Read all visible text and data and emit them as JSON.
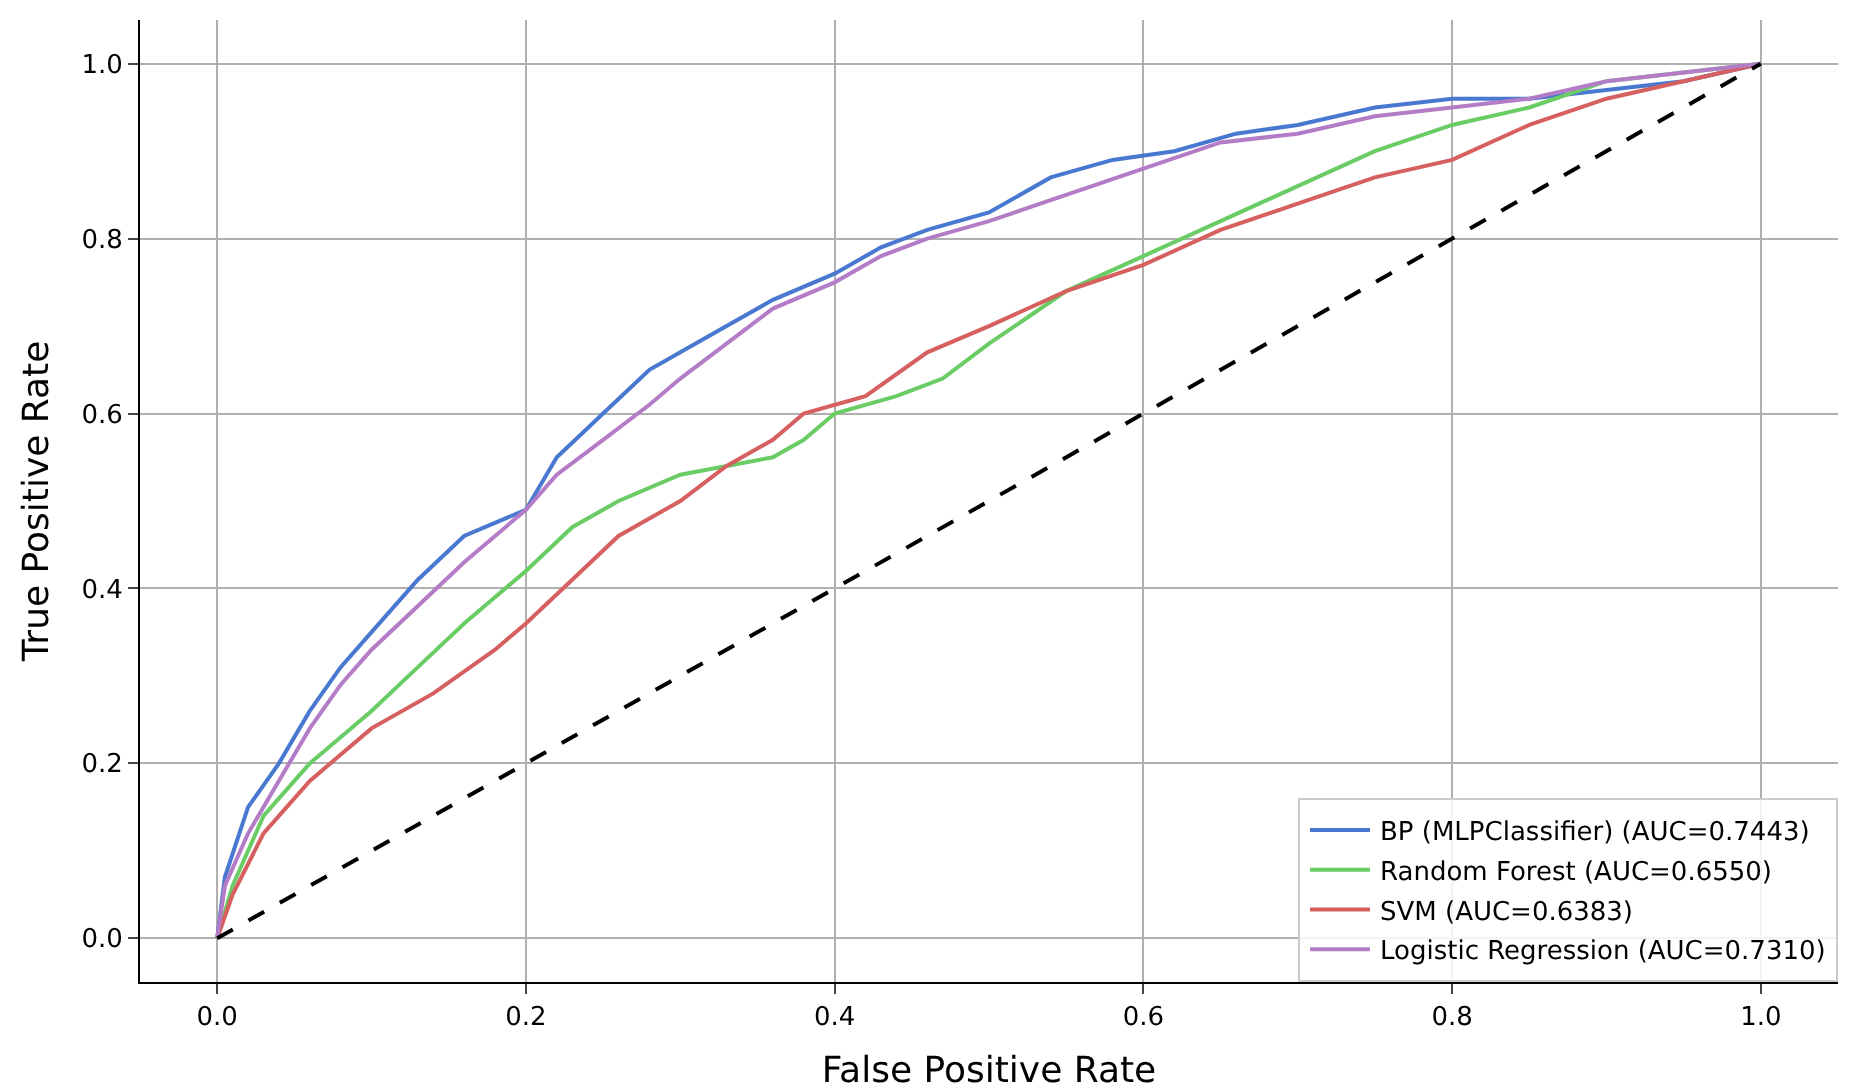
{
  "chart_data": {
    "type": "line",
    "xlabel": "False Positive Rate",
    "ylabel": "True Positive Rate",
    "xlim": [
      -0.05,
      1.05
    ],
    "ylim": [
      -0.05,
      1.05
    ],
    "xticks": [
      {
        "value": 0,
        "label": "0.0"
      },
      0.2,
      0.4,
      0.6,
      0.8,
      {
        "value": 1,
        "label": "1.0"
      }
    ],
    "yticks": [
      {
        "value": 0,
        "label": "0.0"
      },
      0.2,
      0.4,
      0.6,
      0.8,
      {
        "value": 1,
        "label": "1.0"
      }
    ],
    "grid": true,
    "legend": "bottom right",
    "marker": "none",
    "series": [
      {
        "name": "BP (MLPClassifier) (AUC=0.7443)",
        "color": "#4878d0",
        "line_style": "solid",
        "x": [
          0,
          0.005,
          0.02,
          0.04,
          0.06,
          0.08,
          0.1,
          0.13,
          0.16,
          0.2,
          0.22,
          0.25,
          0.28,
          0.3,
          0.33,
          0.36,
          0.4,
          0.43,
          0.46,
          0.5,
          0.54,
          0.58,
          0.62,
          0.66,
          0.7,
          0.75,
          0.8,
          0.85,
          0.9,
          0.95,
          1
        ],
        "values": [
          0,
          0.07,
          0.15,
          0.2,
          0.26,
          0.31,
          0.35,
          0.41,
          0.46,
          0.49,
          0.55,
          0.6,
          0.65,
          0.67,
          0.7,
          0.73,
          0.76,
          0.79,
          0.81,
          0.83,
          0.87,
          0.89,
          0.9,
          0.92,
          0.93,
          0.95,
          0.96,
          0.96,
          0.97,
          0.98,
          1
        ]
      },
      {
        "name": "Random Forest (AUC=0.6550)",
        "color": "#6acc64",
        "line_style": "solid",
        "x": [
          0,
          0.01,
          0.03,
          0.06,
          0.1,
          0.13,
          0.16,
          0.2,
          0.23,
          0.26,
          0.3,
          0.33,
          0.36,
          0.38,
          0.4,
          0.44,
          0.47,
          0.5,
          0.55,
          0.6,
          0.65,
          0.7,
          0.75,
          0.8,
          0.85,
          0.9,
          0.95,
          1
        ],
        "values": [
          0,
          0.06,
          0.14,
          0.2,
          0.26,
          0.31,
          0.36,
          0.42,
          0.47,
          0.5,
          0.53,
          0.54,
          0.55,
          0.57,
          0.6,
          0.62,
          0.64,
          0.68,
          0.74,
          0.78,
          0.82,
          0.86,
          0.9,
          0.93,
          0.95,
          0.98,
          0.99,
          1
        ]
      },
      {
        "name": "SVM (AUC=0.6383)",
        "color": "#d65f5f",
        "line_style": "solid",
        "x": [
          0,
          0.01,
          0.03,
          0.06,
          0.1,
          0.14,
          0.18,
          0.2,
          0.23,
          0.26,
          0.3,
          0.33,
          0.36,
          0.38,
          0.42,
          0.46,
          0.5,
          0.55,
          0.6,
          0.65,
          0.7,
          0.75,
          0.8,
          0.85,
          0.9,
          0.95,
          1
        ],
        "values": [
          0,
          0.05,
          0.12,
          0.18,
          0.24,
          0.28,
          0.33,
          0.36,
          0.41,
          0.46,
          0.5,
          0.54,
          0.57,
          0.6,
          0.62,
          0.67,
          0.7,
          0.74,
          0.77,
          0.81,
          0.84,
          0.87,
          0.89,
          0.93,
          0.96,
          0.98,
          1
        ]
      },
      {
        "name": "Logistic Regression (AUC=0.7310)",
        "color": "#b47cc7",
        "line_style": "solid",
        "x": [
          0,
          0.005,
          0.02,
          0.04,
          0.06,
          0.08,
          0.1,
          0.13,
          0.16,
          0.2,
          0.22,
          0.25,
          0.28,
          0.3,
          0.33,
          0.36,
          0.4,
          0.43,
          0.46,
          0.5,
          0.55,
          0.6,
          0.65,
          0.7,
          0.75,
          0.8,
          0.85,
          0.9,
          0.95,
          1
        ],
        "values": [
          0,
          0.06,
          0.12,
          0.18,
          0.24,
          0.29,
          0.33,
          0.38,
          0.43,
          0.49,
          0.53,
          0.57,
          0.61,
          0.64,
          0.68,
          0.72,
          0.75,
          0.78,
          0.8,
          0.82,
          0.85,
          0.88,
          0.91,
          0.92,
          0.94,
          0.95,
          0.96,
          0.98,
          0.99,
          1
        ]
      },
      {
        "color": "#000000",
        "line_style": "dashed",
        "x": [
          0,
          1
        ],
        "values": [
          0,
          1
        ]
      }
    ]
  }
}
